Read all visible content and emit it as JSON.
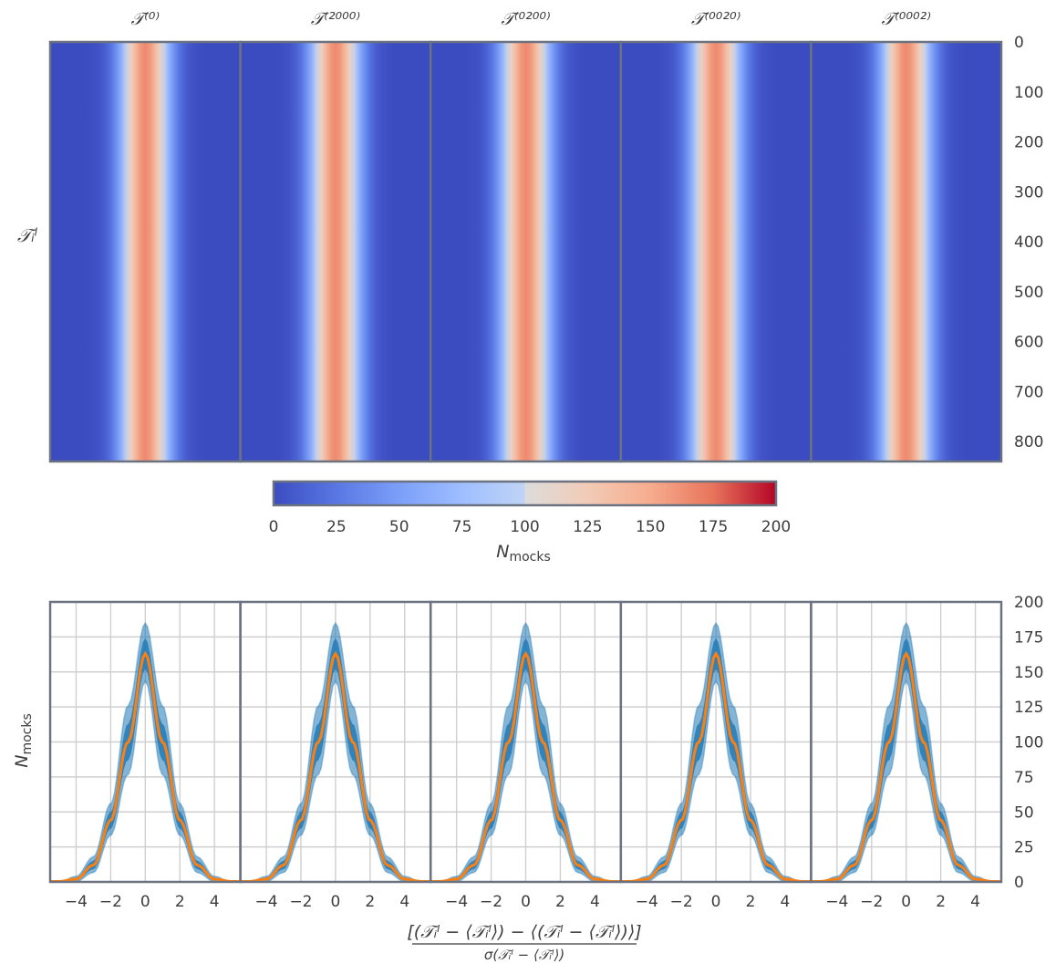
{
  "chart_data": [
    {
      "type": "heatmap",
      "panel_titles": [
        "𝒯⁽⁰⁾",
        "𝒯⁽²⁰⁰⁰⁾",
        "𝒯⁽⁰²⁰⁰⁾",
        "𝒯⁽⁰⁰²⁰⁾",
        "𝒯⁽⁰⁰⁰²⁾"
      ],
      "ylabel": "𝒯ᵢˡ",
      "yticks": [
        "0",
        "100",
        "200",
        "300",
        "400",
        "500",
        "600",
        "700",
        "800"
      ],
      "ylim": [
        0,
        840
      ],
      "x_bin_range": [
        -5.5,
        5.5
      ],
      "band_center": 0,
      "band_peak_value": 165,
      "colormap": "coolwarm",
      "colorbar": {
        "ticks": [
          "0",
          "25",
          "50",
          "75",
          "100",
          "125",
          "150",
          "175",
          "200"
        ],
        "range": [
          0,
          200
        ],
        "label": "N",
        "label_sub": "mocks"
      }
    },
    {
      "type": "line",
      "panels": 5,
      "xticks": [
        "−4",
        "−2",
        "0",
        "2",
        "4"
      ],
      "xlim": [
        -5.5,
        5.5
      ],
      "yticks": [
        "0",
        "25",
        "50",
        "75",
        "100",
        "125",
        "150",
        "175",
        "200"
      ],
      "ylim": [
        0,
        200
      ],
      "ylabel": "N",
      "ylabel_sub": "mocks",
      "xlabel_numerator": "[(𝒯ᵢˡ − ⟨𝒯ᵢˡ⟩) − ⟨(𝒯ᵢˡ − ⟨𝒯ᵢˡ⟩)⟩]",
      "xlabel_denominator": "σ(𝒯ᵢˡ − ⟨𝒯ᵢˡ⟩)",
      "grid": true,
      "series": [
        {
          "kind": "mock-histograms-envelope",
          "color": "#1f77b4",
          "x": [
            -5,
            -4,
            -3,
            -2,
            -1,
            0,
            1,
            2,
            3,
            4,
            5
          ],
          "values": [
            0,
            4,
            18,
            56,
            126,
            185,
            126,
            56,
            18,
            4,
            0
          ]
        },
        {
          "kind": "mean-curve",
          "color": "#ff7f0e",
          "x": [
            -5,
            -4,
            -3,
            -2,
            -1,
            0,
            1,
            2,
            3,
            4,
            5
          ],
          "values": [
            0.3,
            2,
            12,
            44,
            100,
            163,
            100,
            44,
            12,
            2,
            0.3
          ]
        }
      ]
    }
  ]
}
